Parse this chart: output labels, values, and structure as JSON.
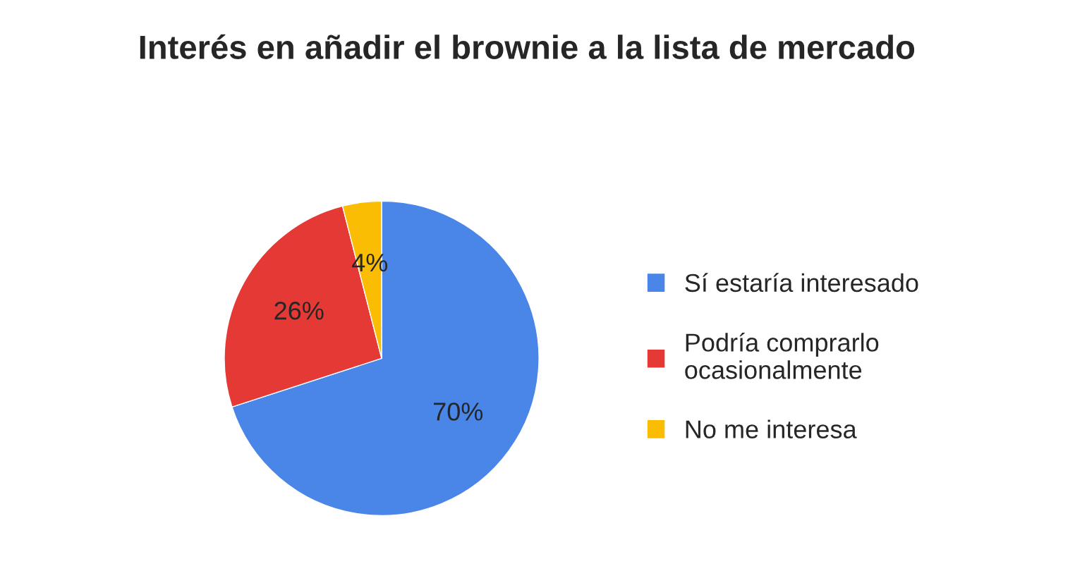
{
  "chart_data": {
    "type": "pie",
    "title": "Interés en añadir el brownie a la lista de mercado",
    "categories": [
      "Sí estaría interesado",
      "Podría comprarlo ocasionalmente",
      "No me interesa"
    ],
    "values": [
      70,
      26,
      4
    ],
    "colors": [
      "#4a86e8",
      "#e53935",
      "#fbbc04"
    ],
    "value_labels": [
      "70%",
      "26%",
      "4%"
    ],
    "legend": "right"
  }
}
